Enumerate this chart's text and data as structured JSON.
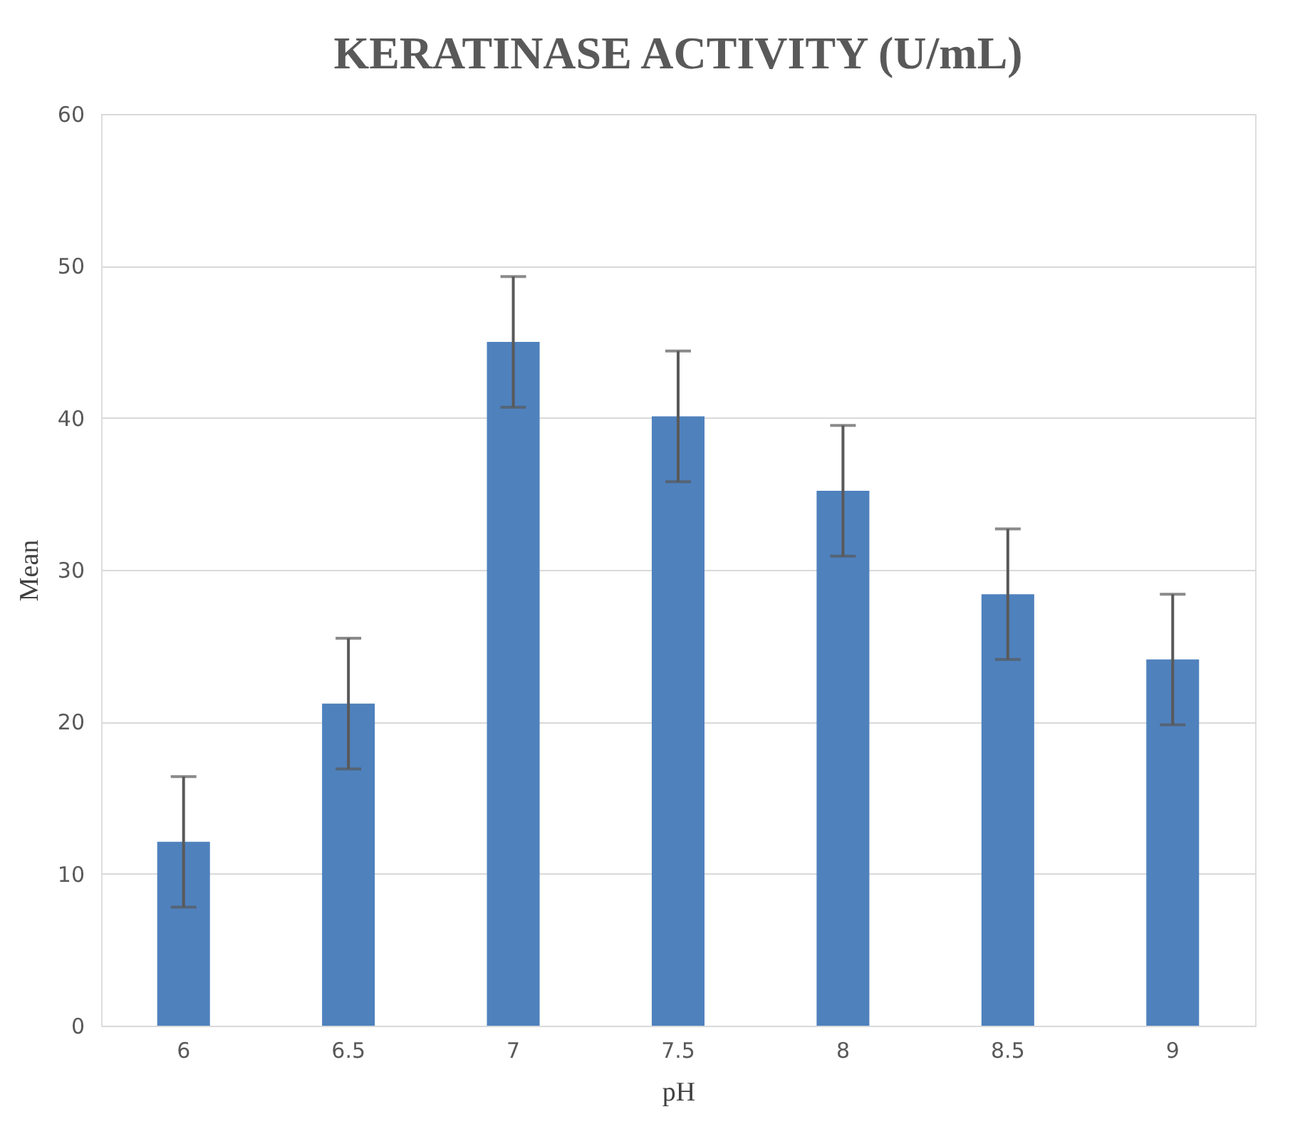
{
  "chart_data": {
    "type": "bar",
    "title": "KERATINASE ACTIVITY (U/mL)",
    "xlabel": "pH",
    "ylabel": "Mean",
    "categories": [
      "6",
      "6.5",
      "7",
      "7.5",
      "8",
      "8.5",
      "9"
    ],
    "values": [
      12.1,
      21.2,
      45.0,
      40.1,
      35.2,
      28.4,
      24.1
    ],
    "errors": [
      4.3,
      4.3,
      4.3,
      4.3,
      4.3,
      4.3,
      4.3
    ],
    "color": "#4f81bd",
    "ylim": [
      0,
      60
    ],
    "yticks": [
      0,
      10,
      20,
      30,
      40,
      50,
      60
    ],
    "grid": "y"
  }
}
